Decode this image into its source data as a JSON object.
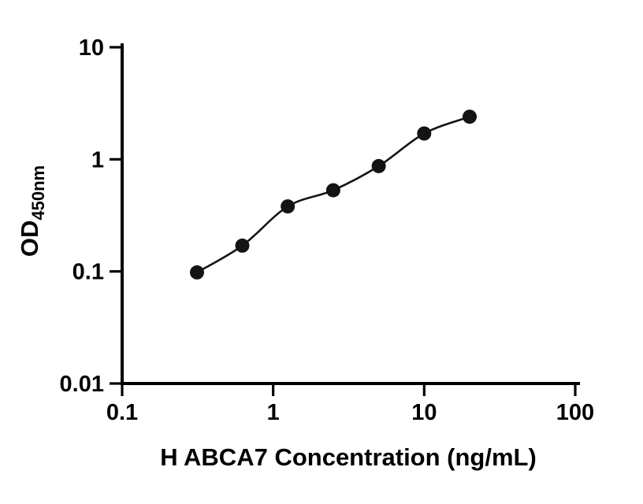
{
  "chart_data": {
    "type": "scatter",
    "title": "",
    "xlabel": "H ABCA7 Concentration (ng/mL)",
    "ylabel_main": "OD",
    "ylabel_sub": "450nm",
    "x_scale": "log",
    "y_scale": "log",
    "xlim": [
      0.1,
      100
    ],
    "ylim": [
      0.01,
      10
    ],
    "x_ticks": [
      "0.1",
      "1",
      "10",
      "100"
    ],
    "y_ticks": [
      "0.01",
      "0.1",
      "1",
      "10"
    ],
    "x": [
      0.313,
      0.625,
      1.25,
      2.5,
      5,
      10,
      20
    ],
    "y": [
      0.098,
      0.17,
      0.38,
      0.53,
      0.87,
      1.7,
      2.4
    ],
    "fit_line": true,
    "grid": false,
    "legend": "none",
    "marker_color": "#141414",
    "line_color": "#141414",
    "axis_color": "#000000"
  }
}
